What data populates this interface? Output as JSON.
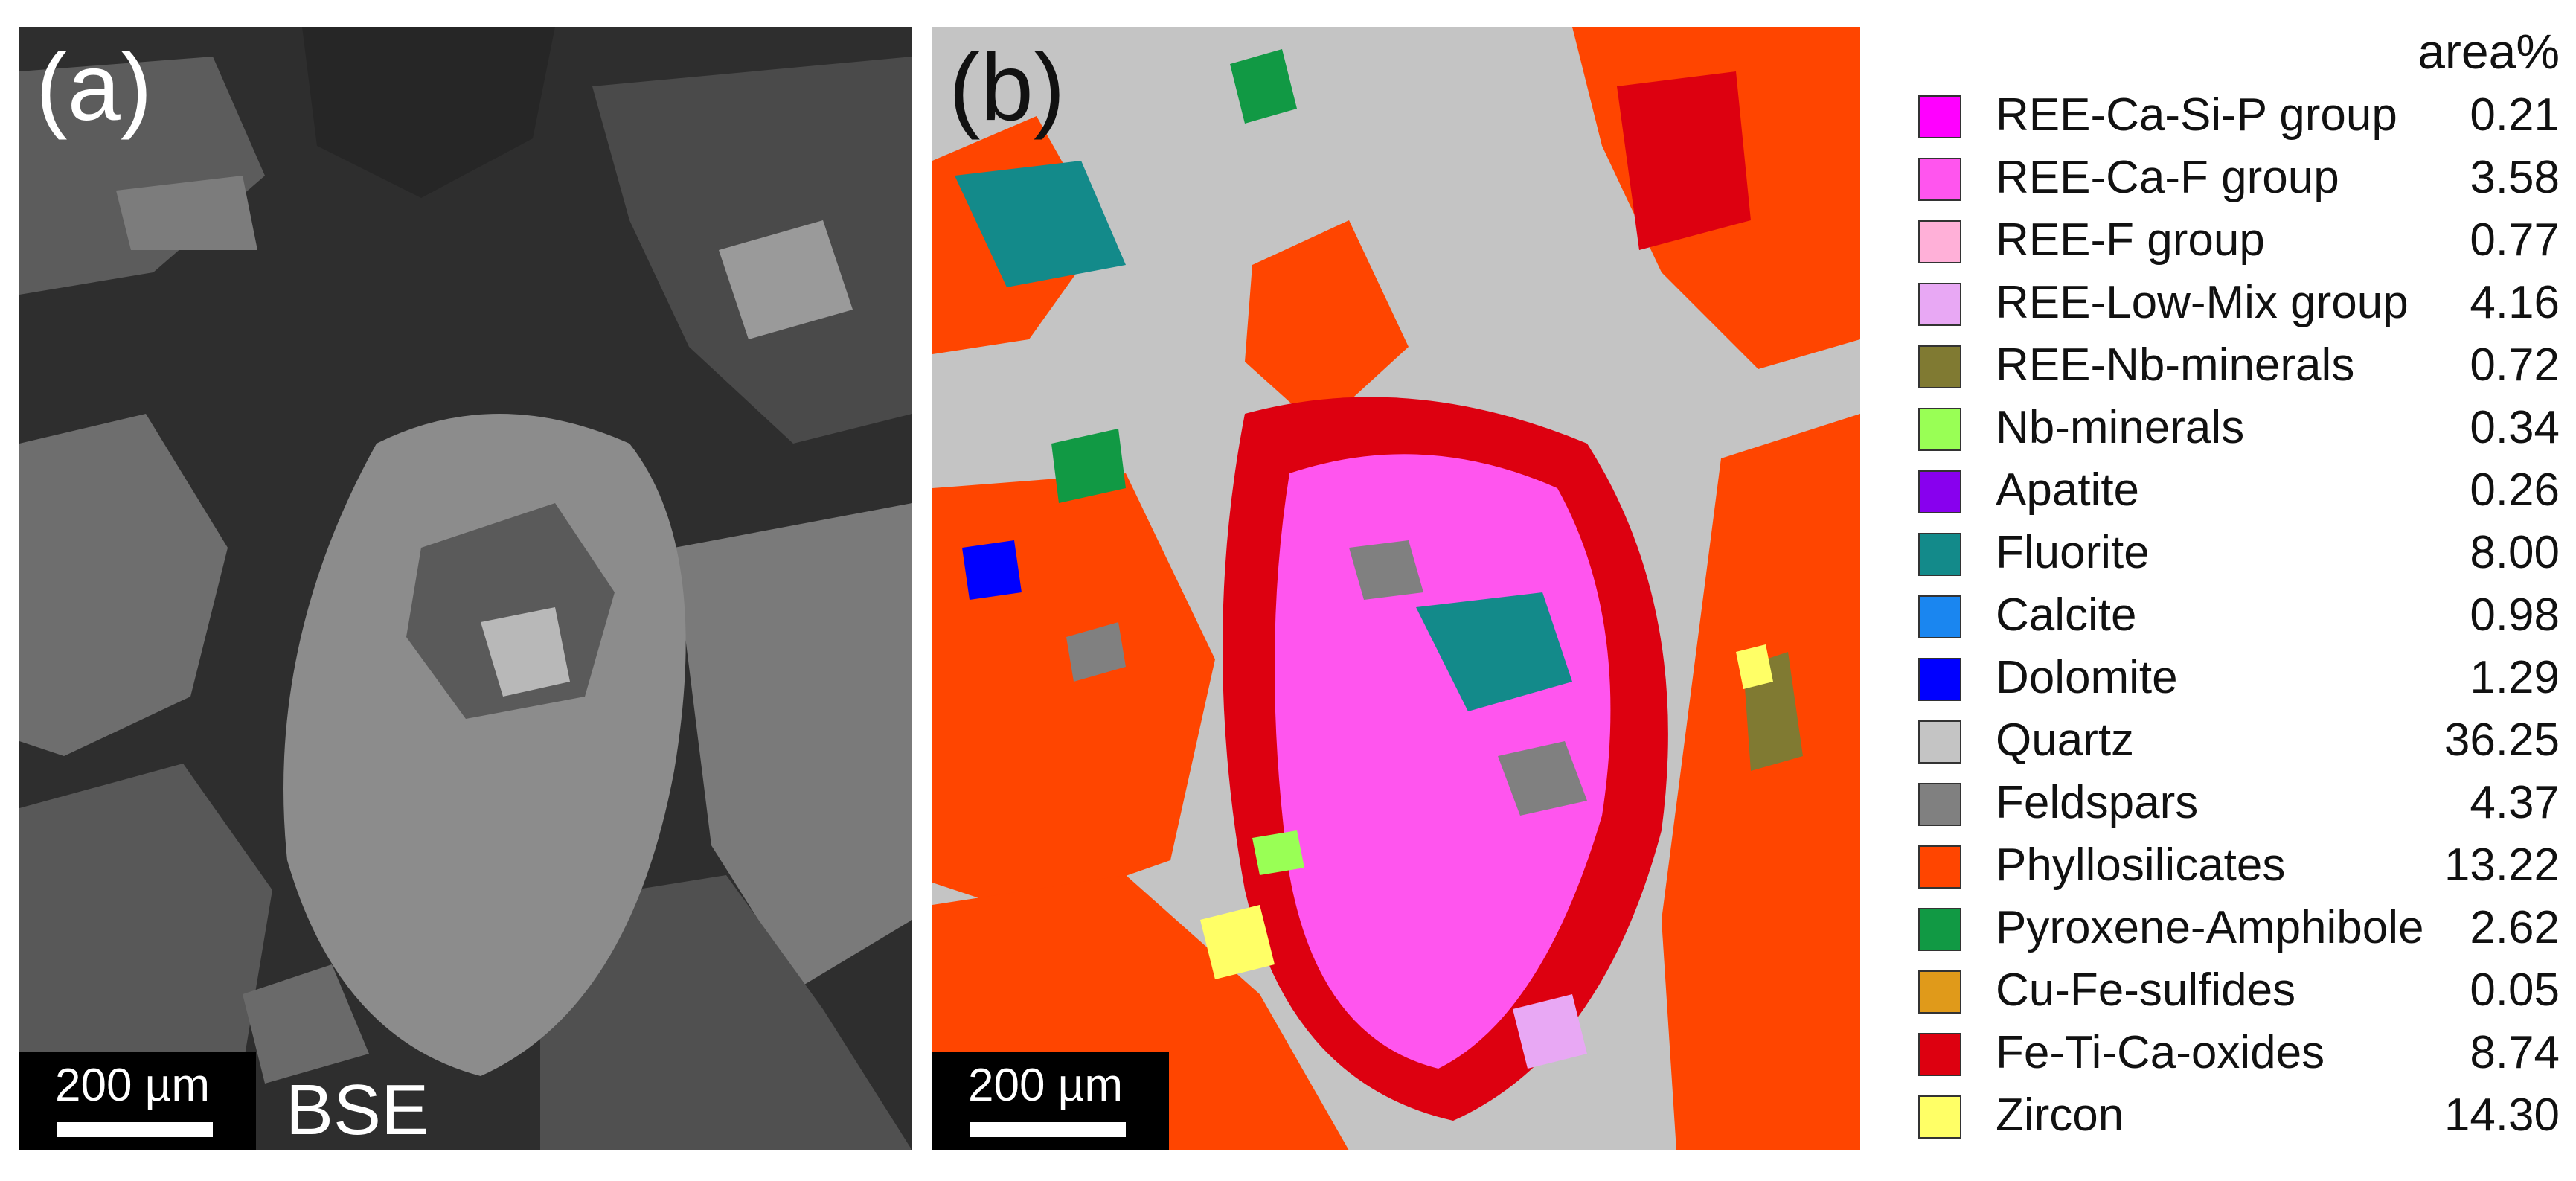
{
  "panel_a": {
    "letter": "(a)",
    "scale_text": "200 µm",
    "mode_label": "BSE"
  },
  "panel_b": {
    "letter": "(b)",
    "scale_text": "200 µm"
  },
  "legend": {
    "header": "area%",
    "items": [
      {
        "label": "REE-Ca-Si-P group",
        "value": "0.21",
        "color": "#ff00ff"
      },
      {
        "label": "REE-Ca-F group",
        "value": "3.58",
        "color": "#ff55ee"
      },
      {
        "label": "REE-F group",
        "value": "0.77",
        "color": "#ffb0d8"
      },
      {
        "label": "REE-Low-Mix group",
        "value": "4.16",
        "color": "#e8a8f4"
      },
      {
        "label": "REE-Nb-minerals",
        "value": "0.72",
        "color": "#807a32"
      },
      {
        "label": "Nb-minerals",
        "value": "0.34",
        "color": "#99ff55"
      },
      {
        "label": "Apatite",
        "value": "0.26",
        "color": "#8800ee"
      },
      {
        "label": "Fluorite",
        "value": "8.00",
        "color": "#138a8a"
      },
      {
        "label": "Calcite",
        "value": "0.98",
        "color": "#1a86f0"
      },
      {
        "label": "Dolomite",
        "value": "1.29",
        "color": "#0000ff"
      },
      {
        "label": "Quartz",
        "value": "36.25",
        "color": "#c4c4c4"
      },
      {
        "label": "Feldspars",
        "value": "4.37",
        "color": "#808080"
      },
      {
        "label": "Phyllosilicates",
        "value": "13.22",
        "color": "#ff4500"
      },
      {
        "label": "Pyroxene-Amphibole",
        "value": "2.62",
        "color": "#119944"
      },
      {
        "label": "Cu-Fe-sulfides",
        "value": "0.05",
        "color": "#e09a1a"
      },
      {
        "label": "Fe-Ti-Ca-oxides",
        "value": "8.74",
        "color": "#dd0010"
      },
      {
        "label": "Zircon",
        "value": "14.30",
        "color": "#ffff66"
      }
    ]
  }
}
